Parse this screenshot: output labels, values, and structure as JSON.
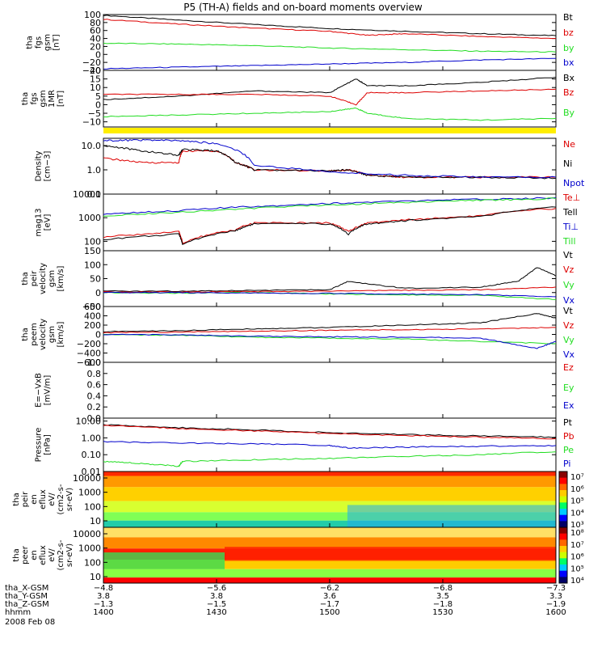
{
  "title": "P5 (TH-A) fields and on-board moments overview",
  "colors": {
    "black": "#000000",
    "red": "#dd0000",
    "green": "#22dd22",
    "blue": "#0000cc",
    "yellow": "#ffee00"
  },
  "chart_data": [
    {
      "type": "line",
      "id": "fgs-gsm",
      "ylabel": [
        "tha",
        "fgs",
        "gsm",
        "[nT]"
      ],
      "ylim": [
        -40,
        100
      ],
      "yticks": [
        {
          "v": 100,
          "t": "100"
        },
        {
          "v": 80,
          "t": "80"
        },
        {
          "v": 60,
          "t": "60"
        },
        {
          "v": 40,
          "t": "40"
        },
        {
          "v": 20,
          "t": "20"
        },
        {
          "v": 0,
          "t": "0"
        },
        {
          "v": -20,
          "t": "−20"
        },
        {
          "v": -40,
          "t": "−40"
        }
      ],
      "series": [
        {
          "name": "Bt",
          "color": "#000000",
          "x": [
            0,
            20,
            40,
            60,
            80,
            100,
            120
          ],
          "y": [
            98,
            86,
            75,
            65,
            58,
            52,
            47
          ]
        },
        {
          "name": "bz",
          "color": "#dd0000",
          "x": [
            0,
            20,
            40,
            60,
            70,
            80,
            100,
            120
          ],
          "y": [
            88,
            76,
            66,
            58,
            48,
            52,
            45,
            40
          ]
        },
        {
          "name": "by",
          "color": "#22dd22",
          "x": [
            0,
            20,
            40,
            60,
            80,
            100,
            120
          ],
          "y": [
            28,
            26,
            22,
            16,
            12,
            8,
            6
          ]
        },
        {
          "name": "bx",
          "color": "#0000cc",
          "x": [
            0,
            20,
            40,
            60,
            80,
            100,
            120
          ],
          "y": [
            -36,
            -32,
            -28,
            -24,
            -20,
            -14,
            -10
          ]
        }
      ]
    },
    {
      "type": "line",
      "id": "fgs-gse",
      "ylabel": [
        "tha",
        "fgs",
        "gsm",
        "1MR",
        "[nT]"
      ],
      "ylim": [
        -13,
        20
      ],
      "yticks": [
        {
          "v": 20,
          "t": "20"
        },
        {
          "v": 15,
          "t": "15"
        },
        {
          "v": 10,
          "t": "10"
        },
        {
          "v": 5,
          "t": "5"
        },
        {
          "v": 0,
          "t": "0"
        },
        {
          "v": -5,
          "t": "−5"
        },
        {
          "v": -10,
          "t": "−10"
        }
      ],
      "series": [
        {
          "name": "Bx",
          "color": "#000000",
          "x": [
            0,
            20,
            40,
            60,
            67,
            70,
            80,
            100,
            120
          ],
          "y": [
            3,
            5,
            8,
            7,
            15,
            11,
            11,
            13,
            16
          ]
        },
        {
          "name": "Bz",
          "color": "#dd0000",
          "x": [
            0,
            20,
            40,
            60,
            67,
            70,
            80,
            100,
            120
          ],
          "y": [
            6,
            6,
            6,
            5,
            0,
            7,
            7,
            8,
            9
          ]
        },
        {
          "name": "By",
          "color": "#22dd22",
          "x": [
            0,
            20,
            40,
            60,
            67,
            70,
            80,
            100,
            120
          ],
          "y": [
            -7,
            -6,
            -5,
            -4,
            -2,
            -5,
            -8,
            -9,
            -8
          ]
        }
      ]
    },
    {
      "type": "line",
      "id": "density",
      "log": true,
      "ylabel": [
        "Density",
        "[cm−3]"
      ],
      "ylim": [
        0.1,
        20
      ],
      "yticks": [
        {
          "v": 10,
          "t": "10.0"
        },
        {
          "v": 1,
          "t": "1.0"
        },
        {
          "v": 0.1,
          "t": "0.1"
        }
      ],
      "series": [
        {
          "name": "Ne",
          "color": "#dd0000",
          "x": [
            0,
            10,
            20,
            21,
            30,
            35,
            40,
            60,
            65,
            70,
            80,
            100,
            120
          ],
          "y": [
            3,
            2,
            2,
            6,
            6,
            2,
            1,
            0.9,
            1,
            0.6,
            0.5,
            0.5,
            0.5
          ]
        },
        {
          "name": "Ni",
          "color": "#000000",
          "x": [
            0,
            10,
            20,
            21,
            30,
            35,
            40,
            60,
            65,
            70,
            80,
            100,
            120
          ],
          "y": [
            10,
            6,
            4,
            7,
            6,
            2,
            1,
            0.9,
            1,
            0.6,
            0.5,
            0.5,
            0.45
          ]
        },
        {
          "name": "Npot",
          "color": "#0000cc",
          "x": [
            0,
            10,
            20,
            30,
            40,
            60,
            80,
            100,
            120
          ],
          "y": [
            16,
            17,
            16,
            12,
            1.5,
            0.8,
            0.6,
            0.5,
            0.5
          ]
        }
      ]
    },
    {
      "type": "line",
      "id": "temperature",
      "log": true,
      "ylabel": [
        "mag13",
        "[eV]"
      ],
      "ylim": [
        40,
        10000
      ],
      "yticks": [
        {
          "v": 10000,
          "t": "10000"
        },
        {
          "v": 1000,
          "t": "1000"
        },
        {
          "v": 100,
          "t": "100"
        }
      ],
      "series": [
        {
          "name": "Te⊥",
          "color": "#dd0000",
          "x": [
            0,
            20,
            21,
            35,
            40,
            60,
            65,
            70,
            80,
            100,
            120
          ],
          "y": [
            150,
            250,
            80,
            300,
            600,
            600,
            250,
            600,
            800,
            1200,
            2500
          ]
        },
        {
          "name": "Tell",
          "color": "#000000",
          "x": [
            0,
            20,
            21,
            35,
            40,
            60,
            65,
            70,
            80,
            100,
            120
          ],
          "y": [
            120,
            200,
            70,
            280,
            550,
            550,
            200,
            550,
            750,
            1100,
            2800
          ]
        },
        {
          "name": "Ti⊥",
          "color": "#0000cc",
          "x": [
            0,
            20,
            40,
            60,
            80,
            100,
            120
          ],
          "y": [
            1400,
            2000,
            3000,
            4000,
            5000,
            6000,
            7000
          ]
        },
        {
          "name": "Till",
          "color": "#22dd22",
          "x": [
            0,
            20,
            40,
            60,
            80,
            100,
            120
          ],
          "y": [
            1200,
            1700,
            2500,
            3500,
            4500,
            5500,
            6500
          ]
        }
      ]
    },
    {
      "type": "line",
      "id": "peir-velocity",
      "ylabel": [
        "tha",
        "peir",
        "velocity",
        "gsm",
        "[km/s]"
      ],
      "ylim": [
        -50,
        150
      ],
      "yticks": [
        {
          "v": 150,
          "t": "150"
        },
        {
          "v": 100,
          "t": "100"
        },
        {
          "v": 50,
          "t": "50"
        },
        {
          "v": 0,
          "t": "0"
        },
        {
          "v": -50,
          "t": "−50"
        }
      ],
      "series": [
        {
          "name": "Vt",
          "color": "#000000",
          "x": [
            0,
            20,
            40,
            60,
            65,
            80,
            100,
            110,
            115,
            120
          ],
          "y": [
            5,
            5,
            8,
            10,
            40,
            15,
            20,
            40,
            90,
            60
          ]
        },
        {
          "name": "Vz",
          "color": "#dd0000",
          "x": [
            0,
            20,
            40,
            60,
            80,
            100,
            120
          ],
          "y": [
            2,
            3,
            3,
            5,
            8,
            10,
            20
          ]
        },
        {
          "name": "Vy",
          "color": "#22dd22",
          "x": [
            0,
            20,
            40,
            60,
            80,
            100,
            120
          ],
          "y": [
            0,
            -2,
            0,
            -5,
            -8,
            -10,
            -25
          ]
        },
        {
          "name": "Vx",
          "color": "#0000cc",
          "x": [
            0,
            20,
            40,
            60,
            80,
            100,
            120
          ],
          "y": [
            0,
            0,
            -2,
            -3,
            -5,
            -8,
            -15
          ]
        }
      ]
    },
    {
      "type": "line",
      "id": "peem-velocity",
      "ylabel": [
        "tha",
        "peem",
        "velocity",
        "gsm",
        "[km/s]"
      ],
      "ylim": [
        -600,
        600
      ],
      "yticks": [
        {
          "v": 600,
          "t": "600"
        },
        {
          "v": 400,
          "t": "400"
        },
        {
          "v": 200,
          "t": "200"
        },
        {
          "v": 0,
          "t": "0"
        },
        {
          "v": -200,
          "t": "−200"
        },
        {
          "v": -400,
          "t": "−400"
        },
        {
          "v": -600,
          "t": "−600"
        }
      ],
      "series": [
        {
          "name": "Vt",
          "color": "#000000",
          "x": [
            0,
            20,
            40,
            60,
            80,
            100,
            115,
            120
          ],
          "y": [
            60,
            80,
            120,
            150,
            200,
            250,
            450,
            350
          ]
        },
        {
          "name": "Vz",
          "color": "#dd0000",
          "x": [
            0,
            20,
            40,
            60,
            80,
            100,
            120
          ],
          "y": [
            40,
            50,
            70,
            90,
            100,
            120,
            150
          ]
        },
        {
          "name": "Vy",
          "color": "#22dd22",
          "x": [
            0,
            20,
            40,
            60,
            80,
            100,
            120
          ],
          "y": [
            0,
            -20,
            -60,
            -80,
            -100,
            -150,
            -200
          ]
        },
        {
          "name": "Vx",
          "color": "#0000cc",
          "x": [
            0,
            20,
            40,
            60,
            80,
            100,
            115,
            120
          ],
          "y": [
            0,
            -10,
            -40,
            -50,
            -60,
            -80,
            -300,
            -150
          ]
        }
      ]
    },
    {
      "type": "line",
      "id": "e-field",
      "ylabel": [
        "E=−VxB",
        "[mV/m]"
      ],
      "ylim": [
        0,
        1
      ],
      "yticks": [
        {
          "v": 1.0,
          "t": "1.0"
        },
        {
          "v": 0.8,
          "t": "0.8"
        },
        {
          "v": 0.6,
          "t": "0.6"
        },
        {
          "v": 0.4,
          "t": "0.4"
        },
        {
          "v": 0.2,
          "t": "0.2"
        },
        {
          "v": 0.0,
          "t": "0.0"
        }
      ],
      "series": [
        {
          "name": "Ez",
          "color": "#dd0000",
          "x": [],
          "y": []
        },
        {
          "name": "Ey",
          "color": "#22dd22",
          "x": [],
          "y": []
        },
        {
          "name": "Ex",
          "color": "#0000cc",
          "x": [],
          "y": []
        }
      ]
    },
    {
      "type": "line",
      "id": "pressure",
      "log": true,
      "ylabel": [
        "Pressure",
        "[nPa]"
      ],
      "ylim": [
        0.01,
        15
      ],
      "yticks": [
        {
          "v": 10,
          "t": "10.00"
        },
        {
          "v": 1,
          "t": "1.00"
        },
        {
          "v": 0.1,
          "t": "0.10"
        },
        {
          "v": 0.01,
          "t": "0.01"
        }
      ],
      "series": [
        {
          "name": "Pt",
          "color": "#000000",
          "x": [
            0,
            20,
            40,
            60,
            80,
            100,
            120
          ],
          "y": [
            6,
            4,
            3,
            2,
            1.6,
            1.3,
            1.1
          ]
        },
        {
          "name": "Pb",
          "color": "#dd0000",
          "x": [
            0,
            20,
            40,
            60,
            80,
            100,
            120
          ],
          "y": [
            5.5,
            3.6,
            2.6,
            1.8,
            1.4,
            1.1,
            0.9
          ]
        },
        {
          "name": "Pe",
          "color": "#22dd22",
          "x": [
            0,
            10,
            20,
            21,
            40,
            60,
            80,
            100,
            120
          ],
          "y": [
            0.04,
            0.03,
            0.02,
            0.04,
            0.05,
            0.06,
            0.08,
            0.1,
            0.15
          ]
        },
        {
          "name": "Pi",
          "color": "#0000cc",
          "x": [
            0,
            20,
            40,
            60,
            65,
            80,
            100,
            120
          ],
          "y": [
            0.6,
            0.5,
            0.45,
            0.35,
            0.25,
            0.28,
            0.32,
            0.35
          ]
        }
      ]
    },
    {
      "type": "heatmap",
      "id": "peir-spectrogram",
      "ylabel": [
        "tha",
        "peir",
        "en",
        "eflux",
        "eV/",
        "(cm2-s-",
        "sr-eV)"
      ],
      "yticks": [
        "10000",
        "1000",
        "100",
        "10"
      ],
      "colorbar": [
        "10⁷",
        "10⁶",
        "10⁵",
        "10⁴",
        "10³"
      ]
    },
    {
      "type": "heatmap",
      "id": "peer-spectrogram",
      "ylabel": [
        "tha",
        "peer",
        "en",
        "eflux",
        "eV/",
        "(cm2-s-",
        "sr-eV)"
      ],
      "yticks": [
        "10000",
        "1000",
        "100",
        "10"
      ],
      "colorbar": [
        "10⁸",
        "10⁷",
        "10⁶",
        "10⁵",
        "10⁴"
      ]
    }
  ],
  "footer": {
    "labels": [
      "tha_X-GSM",
      "tha_Y-GSM",
      "tha_Z-GSM",
      "hhmm",
      "2008 Feb 08"
    ],
    "columns": [
      [
        "−4.8",
        "3.8",
        "−1.3",
        "1400"
      ],
      [
        "−5.6",
        "3.8",
        "−1.5",
        "1430"
      ],
      [
        "−6.2",
        "3.6",
        "−1.7",
        "1500"
      ],
      [
        "−6.8",
        "3.5",
        "−1.8",
        "1530"
      ],
      [
        "−7.3",
        "3.3",
        "−1.9",
        "1600"
      ]
    ]
  }
}
